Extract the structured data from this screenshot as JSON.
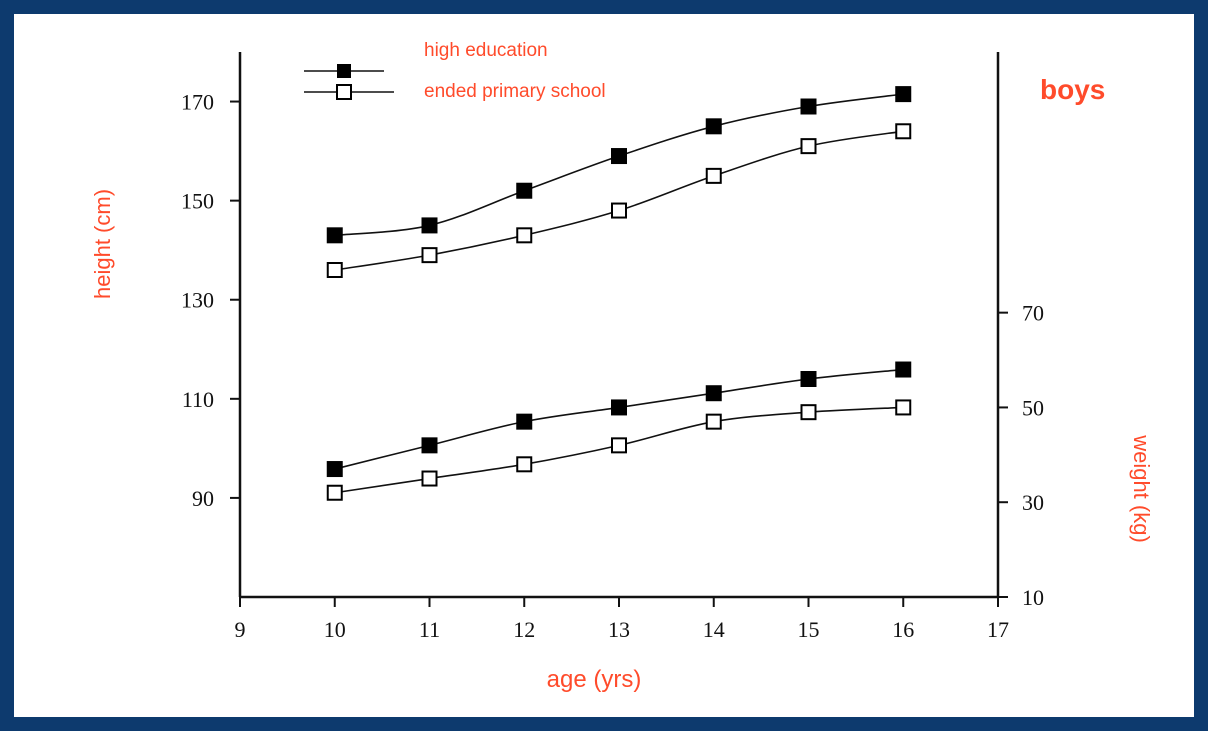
{
  "chart_data": {
    "type": "line",
    "title": "boys",
    "xlabel": "age (yrs)",
    "ylabel_left": "height (cm)",
    "ylabel_right": "weight (kg)",
    "x_ticks": [
      "9",
      "10",
      "11",
      "12",
      "13",
      "14",
      "15",
      "16",
      "17"
    ],
    "y_left_ticks": [
      "90",
      "110",
      "130",
      "150",
      "170"
    ],
    "y_right_ticks": [
      "10",
      "30",
      "50",
      "70"
    ],
    "xlim": [
      9,
      17
    ],
    "ylim_left": [
      70,
      180
    ],
    "ylim_right": [
      10,
      125
    ],
    "legend": {
      "position": "top-left",
      "entries": [
        {
          "label": "high education",
          "marker": "filled-square"
        },
        {
          "label": "ended primary school",
          "marker": "open-square"
        }
      ]
    },
    "x": [
      10,
      11,
      12,
      13,
      14,
      15,
      16
    ],
    "series": [
      {
        "name": "high education",
        "axis": "left",
        "marker": "filled",
        "values": [
          143,
          145,
          152,
          159,
          165,
          169,
          171.5
        ]
      },
      {
        "name": "ended primary school",
        "axis": "left",
        "marker": "open",
        "values": [
          136,
          139,
          143,
          148,
          155,
          161,
          164
        ]
      },
      {
        "name": "high education",
        "axis": "right",
        "marker": "filled",
        "values": [
          37,
          42,
          47,
          50,
          53,
          56,
          58
        ]
      },
      {
        "name": "ended primary school",
        "axis": "right",
        "marker": "open",
        "values": [
          32,
          35,
          38,
          42,
          47,
          49,
          50
        ]
      }
    ],
    "colors": {
      "text_accent": "#ff4b2b",
      "line": "#111111",
      "frame": "#0d3a6e"
    }
  }
}
